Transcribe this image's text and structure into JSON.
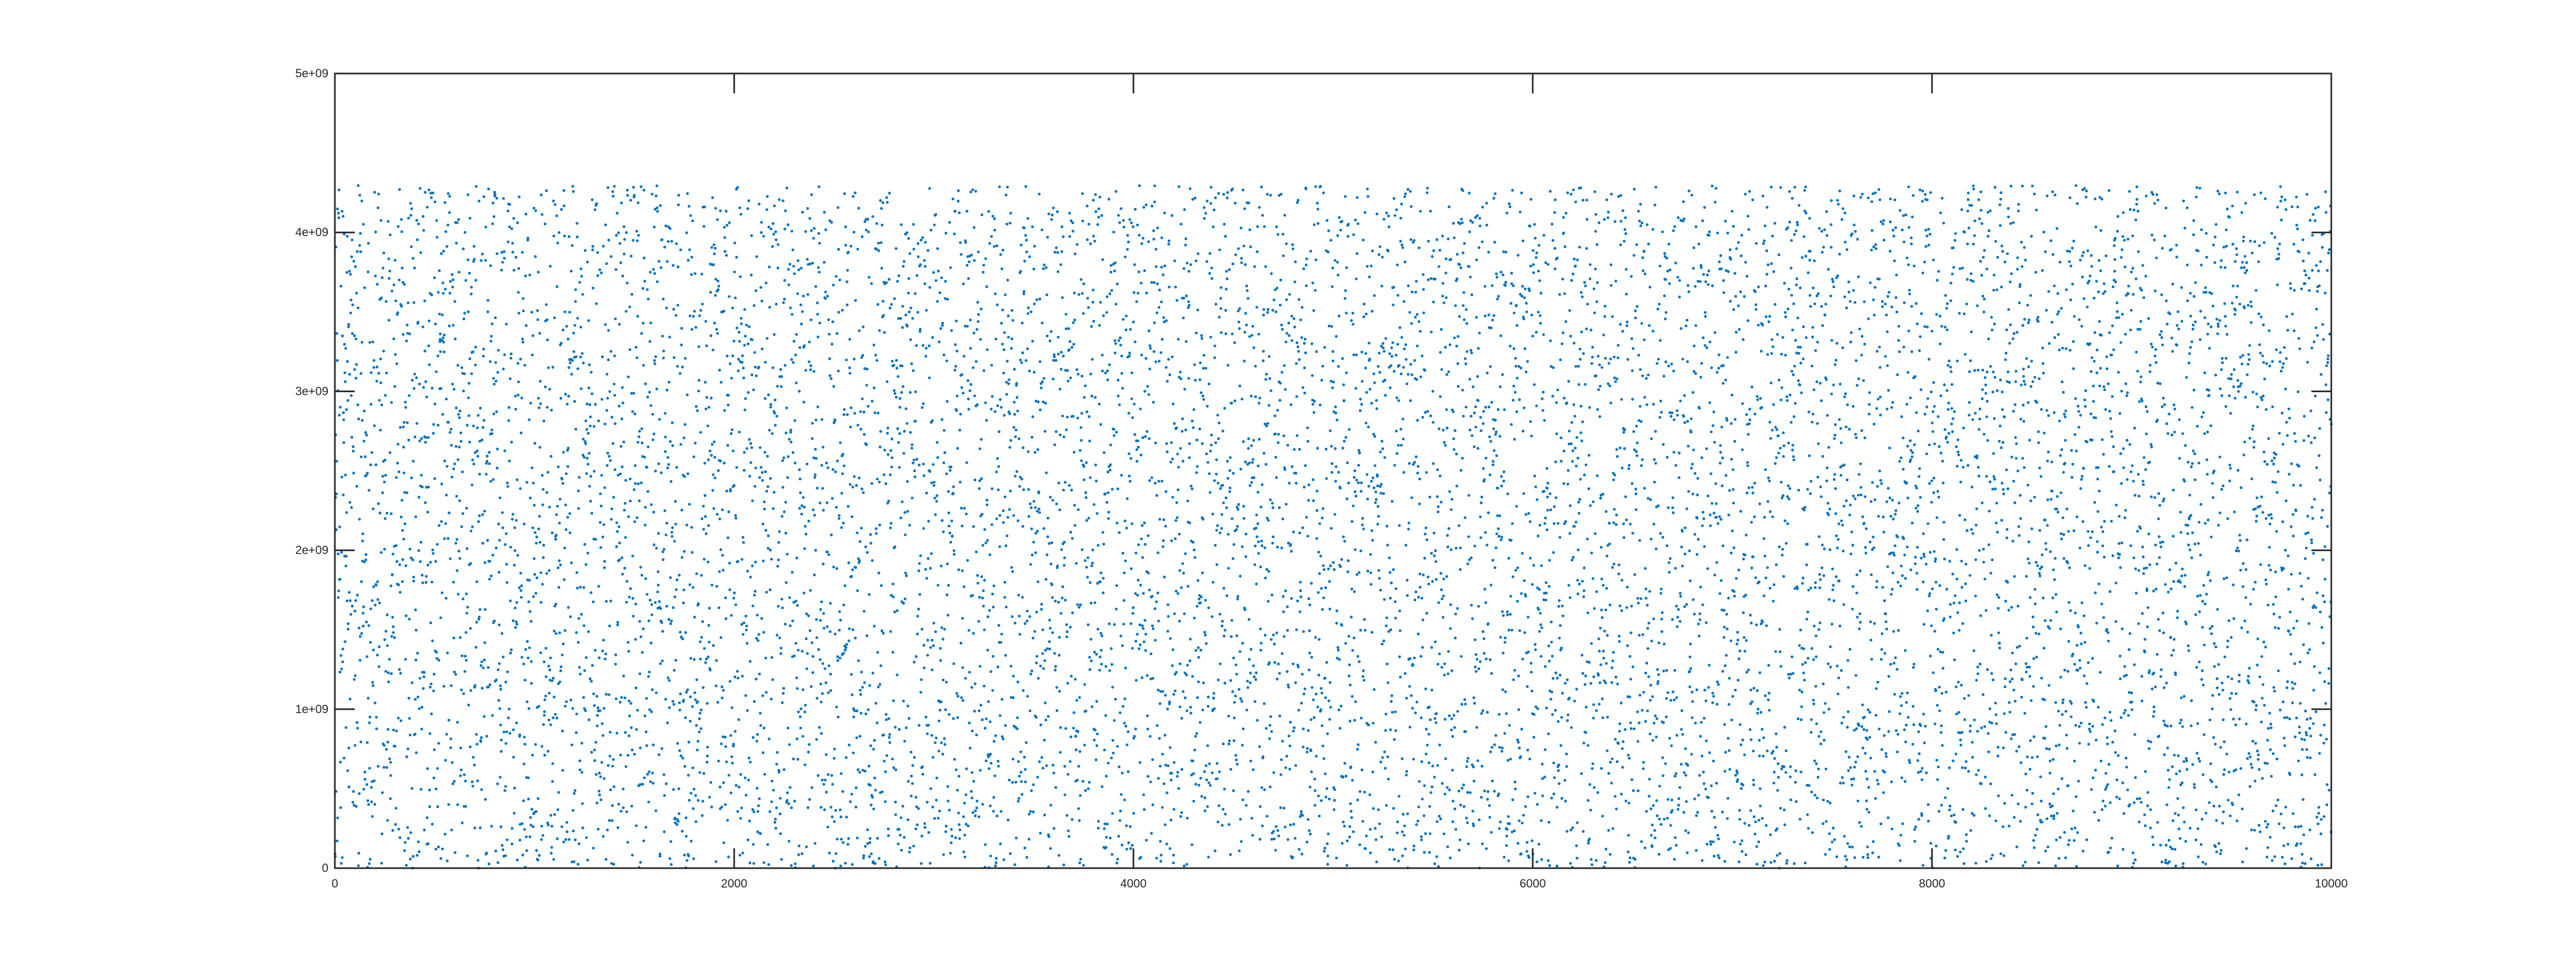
{
  "chart_data": {
    "type": "scatter",
    "title": "",
    "xlabel": "",
    "ylabel": "",
    "xlim": [
      0,
      10000
    ],
    "ylim": [
      0,
      5000000000
    ],
    "x_ticks": [
      0,
      2000,
      4000,
      6000,
      8000,
      10000
    ],
    "x_tick_labels": [
      "0",
      "2000",
      "4000",
      "6000",
      "8000",
      "10000"
    ],
    "y_ticks": [
      0,
      1000000000,
      2000000000,
      3000000000,
      4000000000,
      5000000000
    ],
    "y_tick_labels": [
      "0",
      "1e+09",
      "2e+09",
      "3e+09",
      "4e+09",
      "5e+09"
    ],
    "series": [
      {
        "x_range": [
          1,
          10000
        ],
        "count": 10000,
        "y_range": [
          0,
          4294967295
        ],
        "distribution": "uniform random",
        "marker": "dot",
        "color": "#0072BD"
      }
    ],
    "grid": false,
    "legend": "none"
  }
}
